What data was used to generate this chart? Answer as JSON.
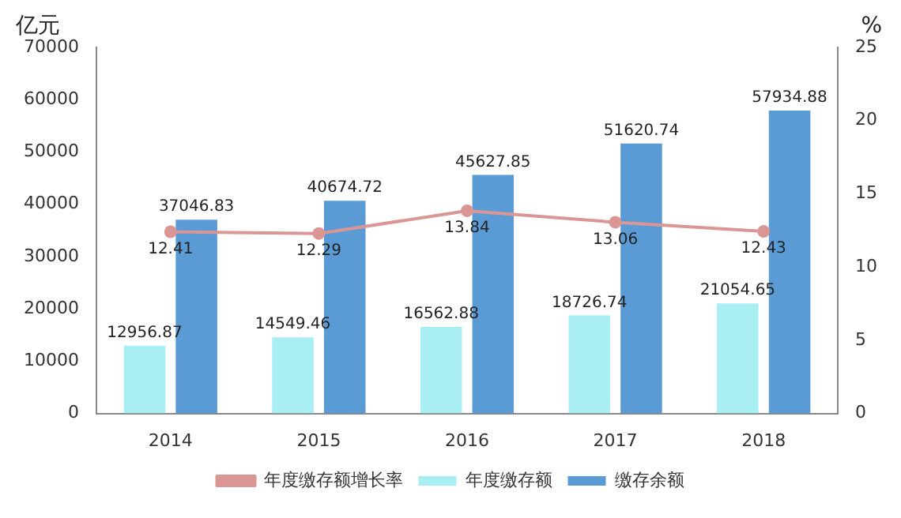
{
  "chart_data": {
    "type": "bar",
    "categories": [
      "2014",
      "2015",
      "2016",
      "2017",
      "2018"
    ],
    "series": [
      {
        "name": "年度缴存额",
        "color": "#a8eef2",
        "values": [
          12956.87,
          14549.46,
          16562.88,
          18726.74,
          21054.65
        ]
      },
      {
        "name": "缴存余额",
        "color": "#5b9bd5",
        "values": [
          37046.83,
          40674.72,
          45627.85,
          51620.74,
          57934.88
        ]
      },
      {
        "name": "年度缴存额增长率",
        "type": "line",
        "axis": "y2",
        "color": "#d99694",
        "values": [
          12.41,
          12.29,
          13.84,
          13.06,
          12.43
        ]
      }
    ],
    "ylabel": "亿元",
    "y2label": "%",
    "ylim": [
      0,
      70000
    ],
    "yticks": [
      0,
      10000,
      20000,
      30000,
      40000,
      50000,
      60000,
      70000
    ],
    "y2lim": [
      0,
      25
    ],
    "y2ticks": [
      0,
      5,
      10,
      15,
      20,
      25
    ],
    "legend": "bottom",
    "marker": "circle",
    "data_labels": true
  }
}
